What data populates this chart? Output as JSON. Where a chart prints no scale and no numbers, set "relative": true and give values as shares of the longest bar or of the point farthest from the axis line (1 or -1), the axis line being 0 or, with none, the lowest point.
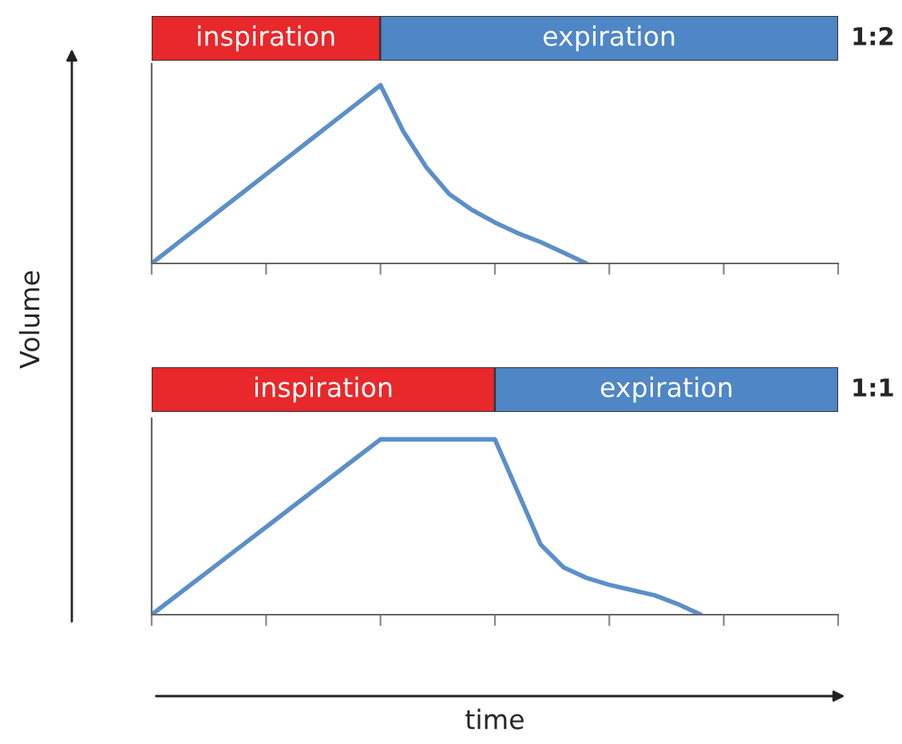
{
  "chart_data": [
    {
      "type": "bar",
      "orientation": "horizontal",
      "stacked": true,
      "relative": true,
      "annotations": [
        "1:2"
      ],
      "categories": [
        null
      ],
      "series": [
        {
          "name": "inspiration",
          "color": "#e8282b",
          "values": [
            0.333
          ]
        },
        {
          "name": "expiration",
          "color": "#4f86c6",
          "values": [
            0.667
          ]
        }
      ]
    },
    {
      "type": "line",
      "relative": true,
      "ylabel": "Volume",
      "categories": [
        null,
        null,
        null,
        null,
        null,
        null,
        null,
        null,
        null,
        null,
        null,
        null,
        null,
        null,
        null,
        null,
        null,
        null,
        null,
        null,
        null,
        null,
        null,
        null,
        null,
        null,
        null,
        null,
        null,
        null,
        null
      ],
      "series": [
        {
          "color": "#5b8fc9",
          "values": [
            0,
            0.1,
            0.2,
            0.3,
            0.4,
            0.5,
            0.6,
            0.7,
            0.8,
            0.9,
            1,
            0.74,
            0.54,
            0.39,
            0.3,
            0.23,
            0.17,
            0.12,
            0.06,
            0,
            null,
            null,
            null,
            null,
            null,
            null,
            null,
            null,
            null,
            null,
            null
          ]
        }
      ]
    },
    {
      "type": "bar",
      "orientation": "horizontal",
      "stacked": true,
      "relative": true,
      "annotations": [
        "1:1"
      ],
      "categories": [
        null
      ],
      "series": [
        {
          "name": "inspiration",
          "color": "#e8282b",
          "values": [
            0.5
          ]
        },
        {
          "name": "expiration",
          "color": "#4f86c6",
          "values": [
            0.5
          ]
        }
      ]
    },
    {
      "type": "line",
      "relative": true,
      "xlabel": "time",
      "categories": [
        null,
        null,
        null,
        null,
        null,
        null,
        null,
        null,
        null,
        null,
        null,
        null,
        null,
        null,
        null,
        null,
        null,
        null,
        null,
        null,
        null,
        null,
        null,
        null,
        null,
        null,
        null,
        null,
        null,
        null,
        null
      ],
      "series": [
        {
          "color": "#5b8fc9",
          "values": [
            0,
            0.1,
            0.2,
            0.3,
            0.4,
            0.5,
            0.6,
            0.7,
            0.8,
            0.9,
            1,
            1,
            1,
            1,
            1,
            1,
            0.7,
            0.4,
            0.27,
            0.21,
            0.17,
            0.14,
            0.11,
            0.06,
            0,
            null,
            null,
            null,
            null,
            null,
            null
          ]
        }
      ]
    }
  ]
}
